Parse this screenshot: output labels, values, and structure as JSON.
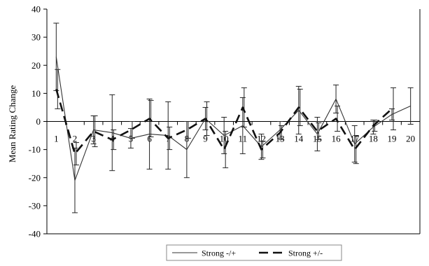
{
  "chart_data": {
    "type": "line",
    "title": "",
    "xlabel": "",
    "ylabel": "Mean Rating Change",
    "ylim": [
      -40,
      40
    ],
    "yticks": [
      40,
      30,
      20,
      10,
      0,
      -10,
      -20,
      -30,
      -40
    ],
    "categories": [
      "1",
      "2",
      "3",
      "4",
      "5",
      "6",
      "7",
      "8",
      "9",
      "10",
      "11",
      "12",
      "13",
      "14",
      "15",
      "16",
      "17",
      "18",
      "19",
      "20"
    ],
    "grid": false,
    "legend_position": "bottom",
    "series": [
      {
        "name": "Strong -/+",
        "style": "solid",
        "color": "#333333",
        "values": [
          23,
          -21,
          -3,
          -4,
          -6,
          -4.5,
          -5,
          -10,
          1,
          -5,
          -1.5,
          -9,
          -3,
          4,
          -4.5,
          8,
          -8,
          -2,
          2.5,
          5.5
        ],
        "error": [
          12,
          11.5,
          5,
          13.5,
          3.5,
          12.5,
          12,
          10,
          4,
          6.5,
          10,
          4.5,
          3,
          8.5,
          6,
          5,
          6.5,
          2.5,
          2,
          6.5
        ]
      },
      {
        "name": "Strong +/-",
        "style": "dashed",
        "color": "#111111",
        "values": [
          11.5,
          -11.5,
          -3.5,
          -6.5,
          -3,
          1,
          -6,
          -3,
          1,
          -10,
          5,
          -10,
          -4,
          5,
          -3.5,
          1,
          -10,
          -1.5,
          4.5,
          null
        ],
        "error": [
          7,
          4,
          5.5,
          3.5,
          3,
          6.5,
          4,
          3,
          6,
          6.5,
          7,
          3,
          2.5,
          6.5,
          3,
          4.5,
          5,
          2,
          7.5,
          null
        ]
      }
    ]
  }
}
